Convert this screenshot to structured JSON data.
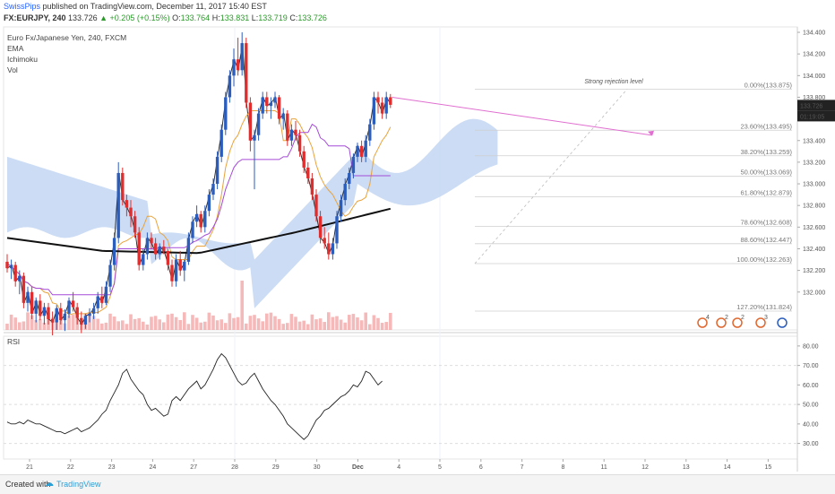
{
  "header": {
    "author": "SwissPips",
    "published": " published on TradingView.com, December 11, 2017 15:40 EST",
    "symbol_line_symbol": "FX:EURJPY, 240",
    "last": "133.726",
    "change": "+0.205 (+0.15%)",
    "open": "133.764",
    "high": "133.831",
    "low": "133.719",
    "close": "133.726",
    "o_label": "O:",
    "h_label": "H:",
    "l_label": "L:",
    "c_label": "C:"
  },
  "indicators": [
    "Euro Fx/Japanese Yen, 240, FXCM",
    "EMA",
    "Ichimoku",
    "Vol"
  ],
  "rsi_label": "RSI",
  "annotation": "Strong rejection level",
  "price_tags": {
    "price": "133.726",
    "countdown": "01:19:05"
  },
  "footer": {
    "created_with": "Created with",
    "brand": "TradingView"
  },
  "colors": {
    "up": "#2b5dbd",
    "down": "#e02e2e",
    "cloud": "#c2d6f2",
    "ema200": "#111111",
    "tenkan": "#e8a33d",
    "kijun": "#a64bd8",
    "chikou": "#222222",
    "volume": "#f2a7a7"
  },
  "chart_data": [
    {
      "type": "candlestick",
      "title": "Euro Fx/Japanese Yen, 240, FXCM",
      "ylim": [
        131.65,
        134.45
      ],
      "y_ticks": [
        132.0,
        132.2,
        132.4,
        132.6,
        132.8,
        133.0,
        133.2,
        133.4,
        133.6,
        133.8,
        134.0,
        134.2,
        134.4
      ],
      "x_ticks": [
        "21",
        "22",
        "23",
        "24",
        "27",
        "28",
        "29",
        "30",
        "Dec",
        "4",
        "5",
        "6",
        "7",
        "8",
        "11",
        "12",
        "13",
        "14",
        "15"
      ],
      "candles": [
        [
          132.28,
          132.35,
          132.18,
          132.22
        ],
        [
          132.22,
          132.3,
          132.12,
          132.25
        ],
        [
          132.25,
          132.28,
          132.05,
          132.1
        ],
        [
          132.1,
          132.2,
          131.98,
          132.15
        ],
        [
          132.15,
          132.18,
          131.85,
          131.9
        ],
        [
          131.9,
          132.05,
          131.82,
          132.0
        ],
        [
          132.0,
          132.05,
          131.75,
          131.8
        ],
        [
          131.8,
          131.95,
          131.72,
          131.92
        ],
        [
          131.92,
          131.98,
          131.74,
          131.78
        ],
        [
          131.78,
          131.9,
          131.7,
          131.86
        ],
        [
          131.86,
          131.9,
          131.7,
          131.75
        ],
        [
          131.75,
          131.82,
          131.6,
          131.72
        ],
        [
          131.72,
          131.88,
          131.65,
          131.85
        ],
        [
          131.85,
          131.9,
          131.7,
          131.74
        ],
        [
          131.74,
          131.84,
          131.64,
          131.8
        ],
        [
          131.8,
          131.95,
          131.76,
          131.92
        ],
        [
          131.92,
          132.0,
          131.82,
          131.86
        ],
        [
          131.86,
          131.9,
          131.7,
          131.76
        ],
        [
          131.76,
          131.82,
          131.62,
          131.7
        ],
        [
          131.7,
          131.8,
          131.66,
          131.78
        ],
        [
          131.78,
          131.85,
          131.72,
          131.8
        ],
        [
          131.8,
          131.9,
          131.75,
          131.85
        ],
        [
          131.85,
          132.0,
          131.8,
          131.96
        ],
        [
          131.96,
          132.05,
          131.85,
          131.9
        ],
        [
          131.9,
          132.1,
          131.88,
          132.05
        ],
        [
          132.05,
          132.3,
          132.0,
          132.25
        ],
        [
          132.25,
          132.55,
          132.2,
          132.5
        ],
        [
          132.5,
          133.2,
          132.45,
          133.1
        ],
        [
          133.1,
          133.15,
          132.8,
          132.85
        ],
        [
          132.85,
          132.9,
          132.7,
          132.78
        ],
        [
          132.78,
          132.85,
          132.6,
          132.7
        ],
        [
          132.7,
          132.75,
          132.5,
          132.55
        ],
        [
          132.55,
          132.6,
          132.2,
          132.25
        ],
        [
          132.25,
          132.4,
          132.2,
          132.35
        ],
        [
          132.35,
          132.55,
          132.3,
          132.5
        ],
        [
          132.5,
          132.55,
          132.4,
          132.45
        ],
        [
          132.45,
          132.5,
          132.3,
          132.35
        ],
        [
          132.35,
          132.45,
          132.3,
          132.42
        ],
        [
          132.42,
          132.48,
          132.35,
          132.38
        ],
        [
          132.38,
          132.4,
          132.2,
          132.25
        ],
        [
          132.25,
          132.3,
          132.05,
          132.1
        ],
        [
          132.1,
          132.35,
          132.05,
          132.3
        ],
        [
          132.3,
          132.38,
          132.15,
          132.2
        ],
        [
          132.2,
          132.3,
          132.1,
          132.28
        ],
        [
          132.28,
          132.55,
          132.25,
          132.5
        ],
        [
          132.5,
          132.7,
          132.45,
          132.65
        ],
        [
          132.65,
          132.8,
          132.6,
          132.72
        ],
        [
          132.72,
          132.75,
          132.55,
          132.6
        ],
        [
          132.6,
          132.8,
          132.55,
          132.75
        ],
        [
          132.75,
          132.95,
          132.7,
          132.9
        ],
        [
          132.9,
          133.05,
          132.85,
          133.0
        ],
        [
          133.0,
          133.3,
          132.95,
          133.25
        ],
        [
          133.25,
          133.55,
          133.2,
          133.5
        ],
        [
          133.5,
          133.85,
          133.45,
          133.8
        ],
        [
          133.8,
          134.05,
          133.75,
          134.0
        ],
        [
          134.0,
          134.25,
          133.9,
          134.15
        ],
        [
          134.15,
          134.35,
          134.0,
          134.05
        ],
        [
          134.05,
          134.4,
          134.0,
          134.3
        ],
        [
          134.3,
          134.35,
          133.7,
          133.75
        ],
        [
          133.75,
          133.8,
          133.3,
          133.4
        ],
        [
          133.4,
          133.5,
          132.95,
          133.45
        ],
        [
          133.45,
          133.7,
          133.4,
          133.65
        ],
        [
          133.65,
          133.85,
          133.6,
          133.8
        ],
        [
          133.8,
          133.85,
          133.65,
          133.72
        ],
        [
          133.72,
          133.8,
          133.6,
          133.75
        ],
        [
          133.75,
          133.85,
          133.7,
          133.8
        ],
        [
          133.8,
          133.82,
          133.55,
          133.6
        ],
        [
          133.6,
          133.7,
          133.5,
          133.65
        ],
        [
          133.65,
          133.68,
          133.35,
          133.4
        ],
        [
          133.4,
          133.55,
          133.35,
          133.5
        ],
        [
          133.5,
          133.58,
          133.4,
          133.45
        ],
        [
          133.45,
          133.5,
          133.25,
          133.3
        ],
        [
          133.3,
          133.35,
          133.1,
          133.15
        ],
        [
          133.15,
          133.2,
          133.0,
          133.05
        ],
        [
          133.05,
          133.1,
          132.85,
          132.9
        ],
        [
          132.9,
          132.95,
          132.65,
          132.7
        ],
        [
          132.7,
          132.75,
          132.45,
          132.5
        ],
        [
          132.5,
          132.6,
          132.4,
          132.45
        ],
        [
          132.45,
          132.55,
          132.3,
          132.35
        ],
        [
          132.35,
          132.5,
          132.3,
          132.45
        ],
        [
          132.45,
          132.75,
          132.4,
          132.7
        ],
        [
          132.7,
          132.9,
          132.65,
          132.85
        ],
        [
          132.85,
          133.05,
          132.8,
          133.0
        ],
        [
          133.0,
          133.15,
          132.95,
          133.1
        ],
        [
          133.1,
          133.28,
          133.05,
          133.25
        ],
        [
          133.25,
          133.38,
          133.2,
          133.35
        ],
        [
          133.35,
          133.4,
          133.2,
          133.25
        ],
        [
          133.25,
          133.45,
          133.2,
          133.4
        ],
        [
          133.4,
          133.6,
          133.35,
          133.55
        ],
        [
          133.55,
          133.85,
          133.5,
          133.8
        ],
        [
          133.8,
          133.85,
          133.65,
          133.75
        ],
        [
          133.75,
          133.8,
          133.6,
          133.65
        ],
        [
          133.65,
          133.85,
          133.6,
          133.8
        ],
        [
          133.8,
          133.83,
          133.7,
          133.73
        ]
      ],
      "ema200": [
        132.5,
        132.38,
        132.36,
        132.55,
        132.77
      ],
      "fibonacci": [
        {
          "label": "0.00%",
          "price": 133.875
        },
        {
          "label": "23.60%",
          "price": 133.495
        },
        {
          "label": "38.20%",
          "price": 133.259
        },
        {
          "label": "50.00%",
          "price": 133.069
        },
        {
          "label": "61.80%",
          "price": 132.879
        },
        {
          "label": "78.60%",
          "price": 132.608
        },
        {
          "label": "88.60%",
          "price": 132.447
        },
        {
          "label": "100.00%",
          "price": 132.263
        },
        {
          "label": "127.20%",
          "price": 131.824
        }
      ]
    },
    {
      "type": "line",
      "title": "RSI",
      "ylim": [
        22,
        85
      ],
      "y_ticks": [
        30.0,
        40.0,
        50.0,
        60.0,
        70.0,
        80.0
      ],
      "values": [
        41,
        40,
        40,
        41,
        40,
        42,
        41,
        40,
        40,
        39,
        38,
        37,
        36,
        36,
        35,
        36,
        37,
        38,
        36,
        37,
        38,
        40,
        42,
        45,
        47,
        52,
        56,
        60,
        66,
        68,
        63,
        60,
        57,
        55,
        50,
        47,
        48,
        46,
        44,
        45,
        52,
        54,
        52,
        55,
        58,
        60,
        62,
        58,
        60,
        64,
        68,
        73,
        76,
        74,
        70,
        66,
        62,
        60,
        61,
        64,
        66,
        62,
        58,
        55,
        52,
        50,
        47,
        44,
        40,
        38,
        36,
        34,
        32,
        34,
        38,
        42,
        44,
        47,
        48,
        50,
        52,
        54,
        55,
        57,
        60,
        59,
        62,
        67,
        66,
        63,
        60,
        62
      ]
    }
  ]
}
